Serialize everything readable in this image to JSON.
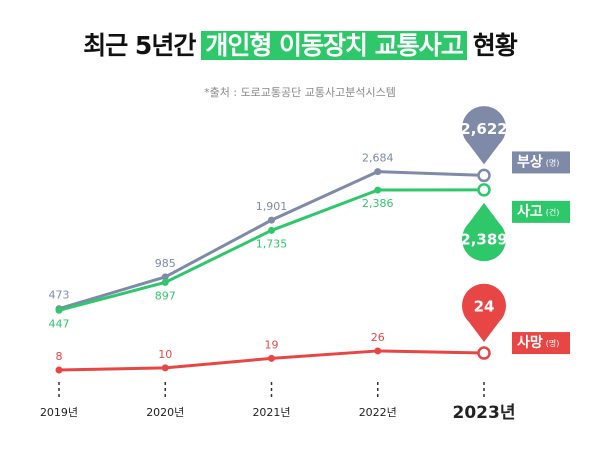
{
  "title_parts": [
    "최근 5년간",
    "개인형 이동장치 교통사고",
    "현황"
  ],
  "source": "*출처 : 도로교통공단 교통사고분석시스템",
  "chart_data": {
    "type": "line",
    "categories": [
      "2019년",
      "2020년",
      "2021년",
      "2022년",
      "2023년"
    ],
    "ylim": [
      0,
      3000
    ],
    "y2lim": [
      0,
      30
    ],
    "series": [
      {
        "name": "부상",
        "unit": "(명)",
        "color": "#7f8aa8",
        "values": [
          473,
          985,
          1901,
          2684,
          2622
        ],
        "value_labels": [
          "473",
          "985",
          "1,901",
          "2,684",
          "2,622"
        ]
      },
      {
        "name": "사고",
        "unit": "(건)",
        "color": "#2ec86b",
        "values": [
          447,
          897,
          1735,
          2386,
          2389
        ],
        "value_labels": [
          "447",
          "897",
          "1,735",
          "2,386",
          "2,389"
        ]
      },
      {
        "name": "사망",
        "unit": "(명)",
        "color": "#e84545",
        "values": [
          8,
          10,
          19,
          26,
          24
        ],
        "axis": "y2"
      }
    ]
  }
}
